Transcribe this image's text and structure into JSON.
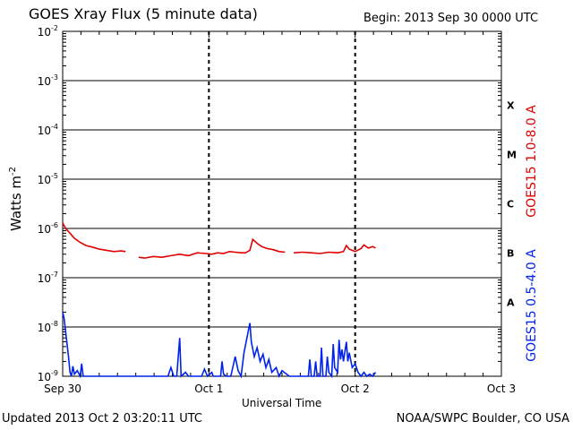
{
  "header": {
    "title": "GOES Xray Flux (5 minute data)",
    "begin": "Begin:  2013 Sep 30 0000 UTC"
  },
  "footer": {
    "updated": "Updated 2013 Oct  2 03:20:11 UTC",
    "credit": "NOAA/SWPC Boulder, CO USA"
  },
  "chart_data": {
    "type": "line",
    "title": "GOES Xray Flux (5 minute data)",
    "xlabel": "Universal Time",
    "ylabel_text": "Watts m",
    "ylabel_sup": "-2",
    "y_scale": "log",
    "ylim": [
      1e-09,
      0.01
    ],
    "xlim_days": [
      0,
      3
    ],
    "x_ticks": [
      "Sep 30",
      "Oct 1",
      "Oct 2",
      "Oct 3"
    ],
    "y_ticks": [
      {
        "base": "10",
        "exp": "-2"
      },
      {
        "base": "10",
        "exp": "-3"
      },
      {
        "base": "10",
        "exp": "-4"
      },
      {
        "base": "10",
        "exp": "-5"
      },
      {
        "base": "10",
        "exp": "-6"
      },
      {
        "base": "10",
        "exp": "-7"
      },
      {
        "base": "10",
        "exp": "-8"
      },
      {
        "base": "10",
        "exp": "-9"
      }
    ],
    "flare_classes": [
      "X",
      "M",
      "C",
      "B",
      "A"
    ],
    "grid": true,
    "series": [
      {
        "name": "GOES15 1.0-8.0 A",
        "color": "#e00000",
        "points": [
          [
            0.0,
            1.3e-06
          ],
          [
            0.02,
            1e-06
          ],
          [
            0.05,
            8e-07
          ],
          [
            0.08,
            6.3e-07
          ],
          [
            0.12,
            5.2e-07
          ],
          [
            0.16,
            4.5e-07
          ],
          [
            0.2,
            4.2e-07
          ],
          [
            0.25,
            3.8e-07
          ],
          [
            0.3,
            3.6e-07
          ],
          [
            0.35,
            3.4e-07
          ],
          [
            0.4,
            3.5e-07
          ],
          [
            0.43,
            3.4e-07
          ],
          [
            null,
            null
          ],
          [
            0.52,
            2.6e-07
          ],
          [
            0.56,
            2.5e-07
          ],
          [
            0.62,
            2.7e-07
          ],
          [
            0.68,
            2.6e-07
          ],
          [
            0.74,
            2.8e-07
          ],
          [
            0.8,
            3e-07
          ],
          [
            0.86,
            2.8e-07
          ],
          [
            0.92,
            3.2e-07
          ],
          [
            0.98,
            3.1e-07
          ],
          [
            1.02,
            3e-07
          ],
          [
            1.06,
            3.2e-07
          ],
          [
            1.1,
            3.1e-07
          ],
          [
            1.14,
            3.4e-07
          ],
          [
            1.18,
            3.3e-07
          ],
          [
            1.22,
            3.2e-07
          ],
          [
            1.25,
            3.2e-07
          ],
          [
            1.28,
            3.6e-07
          ],
          [
            1.3,
            6e-07
          ],
          [
            1.33,
            5e-07
          ],
          [
            1.36,
            4.3e-07
          ],
          [
            1.4,
            3.9e-07
          ],
          [
            1.44,
            3.7e-07
          ],
          [
            1.48,
            3.4e-07
          ],
          [
            1.52,
            3.3e-07
          ],
          [
            null,
            null
          ],
          [
            1.58,
            3.2e-07
          ],
          [
            1.64,
            3.3e-07
          ],
          [
            1.7,
            3.2e-07
          ],
          [
            1.76,
            3.1e-07
          ],
          [
            1.82,
            3.3e-07
          ],
          [
            1.88,
            3.2e-07
          ],
          [
            1.92,
            3.4e-07
          ],
          [
            1.94,
            4.5e-07
          ],
          [
            1.96,
            3.8e-07
          ],
          [
            2.0,
            3.4e-07
          ],
          [
            2.04,
            3.9e-07
          ],
          [
            2.06,
            4.6e-07
          ],
          [
            2.09,
            4e-07
          ],
          [
            2.12,
            4.3e-07
          ],
          [
            2.14,
            4e-07
          ]
        ]
      },
      {
        "name": "GOES15 0.5-4.0 A",
        "color": "#0022ee",
        "points": [
          [
            0.0,
            2e-08
          ],
          [
            0.01,
            1.5e-08
          ],
          [
            0.02,
            8e-09
          ],
          [
            0.03,
            4.5e-09
          ],
          [
            0.04,
            2.5e-09
          ],
          [
            0.05,
            1.2e-09
          ],
          [
            0.06,
            1e-09
          ],
          [
            0.07,
            1.6e-09
          ],
          [
            0.08,
            1.1e-09
          ],
          [
            0.1,
            1.3e-09
          ],
          [
            0.12,
            1e-09
          ],
          [
            0.13,
            1.8e-09
          ],
          [
            0.14,
            1e-09
          ],
          [
            0.18,
            1e-09
          ],
          [
            0.2,
            1e-09
          ],
          [
            0.4,
            1e-09
          ],
          [
            0.6,
            1e-09
          ],
          [
            0.72,
            1e-09
          ],
          [
            0.74,
            1.5e-09
          ],
          [
            0.76,
            1e-09
          ],
          [
            0.78,
            1e-09
          ],
          [
            0.8,
            6e-09
          ],
          [
            0.81,
            1e-09
          ],
          [
            0.84,
            1.2e-09
          ],
          [
            0.86,
            1e-09
          ],
          [
            0.95,
            1e-09
          ],
          [
            0.97,
            1.4e-09
          ],
          [
            0.99,
            1e-09
          ],
          [
            1.02,
            1.2e-09
          ],
          [
            1.03,
            1e-09
          ],
          [
            1.08,
            1e-09
          ],
          [
            1.09,
            2e-09
          ],
          [
            1.1,
            1.1e-09
          ],
          [
            1.12,
            1e-09
          ],
          [
            1.15,
            1e-09
          ],
          [
            1.18,
            2.5e-09
          ],
          [
            1.2,
            1.3e-09
          ],
          [
            1.22,
            1e-09
          ],
          [
            1.24,
            3e-09
          ],
          [
            1.26,
            6e-09
          ],
          [
            1.28,
            1.2e-08
          ],
          [
            1.29,
            5e-09
          ],
          [
            1.31,
            2.5e-09
          ],
          [
            1.33,
            3.8e-09
          ],
          [
            1.35,
            2e-09
          ],
          [
            1.37,
            2.8e-09
          ],
          [
            1.39,
            1.5e-09
          ],
          [
            1.41,
            2.2e-09
          ],
          [
            1.43,
            1.2e-09
          ],
          [
            1.46,
            1.5e-09
          ],
          [
            1.48,
            1e-09
          ],
          [
            1.5,
            1.3e-09
          ],
          [
            1.55,
            1e-09
          ],
          [
            1.6,
            1e-09
          ],
          [
            1.65,
            1e-09
          ],
          [
            1.68,
            1e-09
          ],
          [
            1.69,
            2.2e-09
          ],
          [
            1.7,
            1e-09
          ],
          [
            1.72,
            1e-09
          ],
          [
            1.73,
            2e-09
          ],
          [
            1.74,
            1e-09
          ],
          [
            1.76,
            1e-09
          ],
          [
            1.77,
            3.8e-09
          ],
          [
            1.78,
            1e-09
          ],
          [
            1.8,
            1e-09
          ],
          [
            1.81,
            2.5e-09
          ],
          [
            1.82,
            1.2e-09
          ],
          [
            1.84,
            1e-09
          ],
          [
            1.85,
            4.5e-09
          ],
          [
            1.86,
            1.5e-09
          ],
          [
            1.88,
            1.2e-09
          ],
          [
            1.89,
            5.5e-09
          ],
          [
            1.9,
            2.2e-09
          ],
          [
            1.91,
            3.5e-09
          ],
          [
            1.92,
            2e-09
          ],
          [
            1.94,
            5e-09
          ],
          [
            1.95,
            2e-09
          ],
          [
            1.96,
            3e-09
          ],
          [
            1.98,
            1.5e-09
          ],
          [
            2.0,
            1.8e-09
          ],
          [
            2.02,
            1.2e-09
          ],
          [
            2.04,
            1e-09
          ],
          [
            2.06,
            1.2e-09
          ],
          [
            2.08,
            1e-09
          ],
          [
            2.1,
            1.1e-09
          ],
          [
            2.12,
            1e-09
          ],
          [
            2.14,
            1.2e-09
          ]
        ]
      }
    ]
  }
}
